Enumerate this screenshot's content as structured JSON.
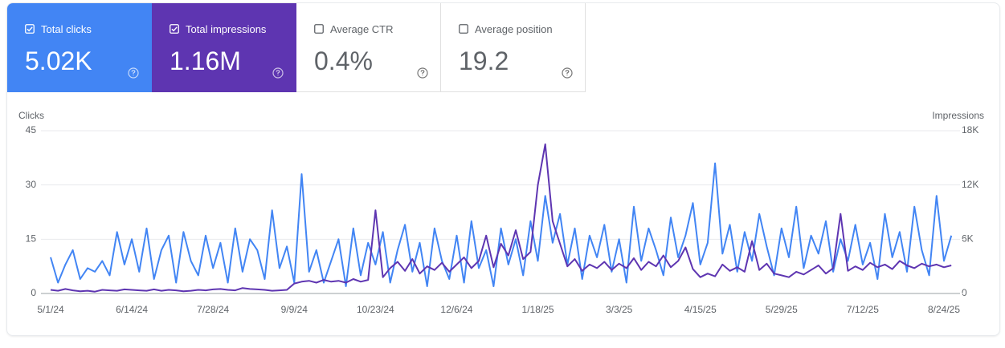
{
  "cards": [
    {
      "label": "Total clicks",
      "value": "5.02K",
      "selected": true,
      "color": "#4285f4"
    },
    {
      "label": "Total impressions",
      "value": "1.16M",
      "selected": true,
      "color": "#5e35b1"
    },
    {
      "label": "Average CTR",
      "value": "0.4%",
      "selected": false,
      "color": "#ffffff"
    },
    {
      "label": "Average position",
      "value": "19.2",
      "selected": false,
      "color": "#ffffff"
    }
  ],
  "chart_data": {
    "type": "line",
    "y_label": "Clicks",
    "y2_label": "Impressions",
    "categories": [
      "5/1/24",
      null,
      null,
      null,
      null,
      null,
      null,
      null,
      null,
      null,
      null,
      "6/14/24",
      null,
      null,
      null,
      null,
      null,
      null,
      null,
      null,
      null,
      null,
      "7/28/24",
      null,
      null,
      null,
      null,
      null,
      null,
      null,
      null,
      null,
      null,
      "9/9/24",
      null,
      null,
      null,
      null,
      null,
      null,
      null,
      null,
      null,
      null,
      "10/23/24",
      null,
      null,
      null,
      null,
      null,
      null,
      null,
      null,
      null,
      null,
      "12/6/24",
      null,
      null,
      null,
      null,
      null,
      null,
      null,
      null,
      null,
      null,
      "1/18/25",
      null,
      null,
      null,
      null,
      null,
      null,
      null,
      null,
      null,
      null,
      "3/3/25",
      null,
      null,
      null,
      null,
      null,
      null,
      null,
      null,
      null,
      null,
      "4/15/25",
      null,
      null,
      null,
      null,
      null,
      null,
      null,
      null,
      null,
      null,
      "5/29/25",
      null,
      null,
      null,
      null,
      null,
      null,
      null,
      null,
      null,
      null,
      "7/12/25",
      null,
      null,
      null,
      null,
      null,
      null,
      null,
      null,
      null,
      null,
      "8/24/25",
      null
    ],
    "series": [
      {
        "name": "Clicks",
        "color": "#4285f4",
        "axis": "y",
        "values": [
          10,
          3,
          8,
          12,
          4,
          7,
          6,
          9,
          5,
          17,
          8,
          15,
          6,
          18,
          4,
          12,
          16,
          3,
          17,
          9,
          5,
          16,
          7,
          14,
          3,
          18,
          6,
          15,
          12,
          4,
          23,
          7,
          13,
          3,
          33,
          6,
          12,
          3,
          9,
          15,
          2,
          18,
          5,
          14,
          8,
          17,
          3,
          12,
          19,
          6,
          14,
          2,
          18,
          9,
          4,
          16,
          3,
          20,
          7,
          12,
          2,
          18,
          8,
          15,
          5,
          20,
          9,
          27,
          14,
          22,
          8,
          18,
          4,
          16,
          10,
          19,
          6,
          15,
          3,
          24,
          9,
          18,
          12,
          5,
          21,
          10,
          16,
          25,
          8,
          14,
          36,
          11,
          19,
          6,
          17,
          9,
          22,
          13,
          5,
          18,
          10,
          24,
          7,
          16,
          11,
          20,
          6,
          15,
          9,
          19,
          8,
          14,
          4,
          22,
          10,
          17,
          6,
          24,
          12,
          5,
          27,
          9,
          16
        ]
      },
      {
        "name": "Impressions",
        "color": "#5e35b1",
        "axis": "y2",
        "values": [
          400,
          300,
          500,
          350,
          250,
          300,
          200,
          400,
          350,
          300,
          450,
          400,
          350,
          300,
          450,
          300,
          400,
          350,
          250,
          300,
          400,
          350,
          450,
          500,
          400,
          350,
          600,
          500,
          450,
          400,
          300,
          350,
          400,
          1100,
          1300,
          1400,
          1200,
          1500,
          1300,
          1400,
          1200,
          1600,
          1300,
          1500,
          9200,
          1800,
          2800,
          3500,
          2500,
          3800,
          2200,
          3000,
          2600,
          3400,
          2400,
          3200,
          4000,
          2800,
          3600,
          6400,
          2900,
          5500,
          4200,
          7000,
          3800,
          4600,
          12000,
          16500,
          8000,
          5500,
          3000,
          3800,
          2500,
          3200,
          2800,
          3500,
          2600,
          3300,
          2800,
          3900,
          2600,
          3500,
          3000,
          4200,
          2900,
          3600,
          5100,
          2700,
          1800,
          2200,
          1900,
          3200,
          2500,
          2900,
          2400,
          5800,
          2600,
          3300,
          2200,
          2000,
          1800,
          2400,
          2100,
          2600,
          3100,
          2200,
          2800,
          8800,
          2500,
          3000,
          2600,
          3400,
          2900,
          3200,
          2700,
          3600,
          3100,
          2800,
          3300,
          3000,
          3200,
          2900,
          3100
        ]
      }
    ],
    "ylim": [
      0,
      45
    ],
    "yticks": [
      0,
      15,
      30,
      45
    ],
    "y2lim": [
      0,
      18000
    ],
    "y2ticks": [
      0,
      {
        "value": 6000,
        "label": "6K"
      },
      {
        "value": 12000,
        "label": "12K"
      },
      {
        "value": 18000,
        "label": "18K"
      }
    ],
    "grid": true
  }
}
